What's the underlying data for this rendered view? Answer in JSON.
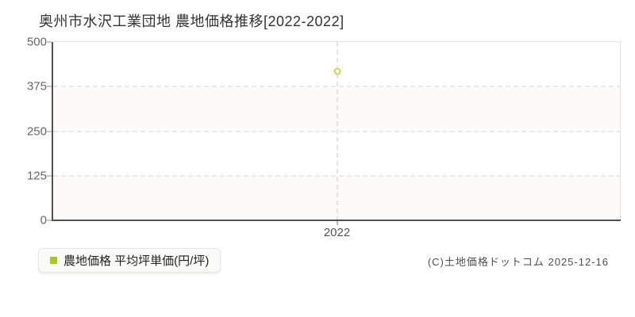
{
  "title": "奥州市水沢工業団地 農地価格推移[2022-2022]",
  "legend": {
    "label": "農地価格 平均坪単価(円/坪)",
    "marker_color": "#a6c81f"
  },
  "copyright": "(C)土地価格ドットコム 2025-12-16",
  "chart_data": {
    "type": "scatter",
    "title": "奥州市水沢工業団地 農地価格推移[2022-2022]",
    "categories": [
      "2022"
    ],
    "series": [
      {
        "name": "農地価格 平均坪単価(円/坪)",
        "values": [
          418
        ],
        "color": "#c6d551",
        "marker": "hollow-circle"
      }
    ],
    "xlabel": "",
    "ylabel": "",
    "unit": "円/坪",
    "ylim": [
      0,
      500
    ],
    "yticks": [
      0,
      125,
      250,
      375,
      500
    ],
    "grid": {
      "horizontal": "dashed-at-yticks",
      "vertical": "dashed-guide-at-each-category"
    },
    "legend_position": "bottom-left",
    "plot_background": "alternating horizontal bands #ffffff / #fcfbf9"
  }
}
